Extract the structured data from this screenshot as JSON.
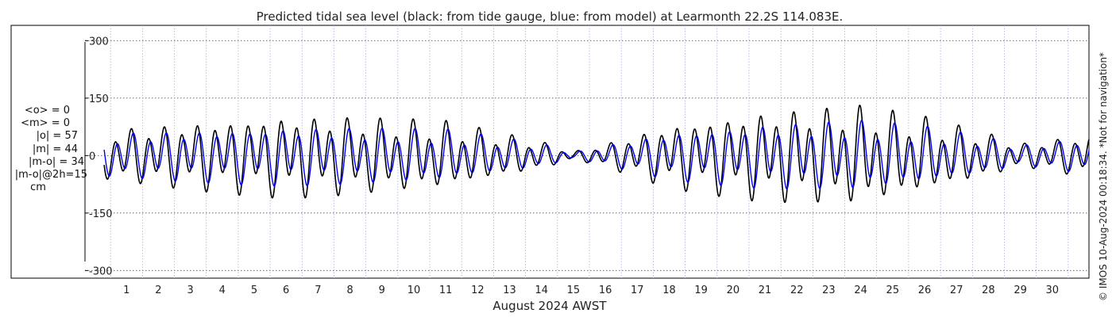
{
  "chart_data": {
    "type": "line",
    "title": "Predicted tidal sea level (black: from tide gauge, blue: from model) at Learmonth 22.2S 114.083E.",
    "xlabel": "August 2024 AWST",
    "ylabel": "",
    "x_tick_labels": [
      "1",
      "2",
      "3",
      "4",
      "5",
      "6",
      "7",
      "8",
      "9",
      "10",
      "11",
      "12",
      "13",
      "14",
      "15",
      "16",
      "17",
      "18",
      "19",
      "20",
      "21",
      "22",
      "23",
      "24",
      "25",
      "26",
      "27",
      "28",
      "29",
      "30"
    ],
    "y_ticks": [
      300,
      150,
      0,
      -150,
      -300
    ],
    "y_tick_labels": [
      "300",
      "150",
      "0",
      "-150",
      "-300"
    ],
    "ylim": [
      -320,
      340
    ],
    "xlim_days": [
      -0.3,
      31.15
    ],
    "grid": true,
    "series": [
      {
        "color": "#000000",
        "amplitude_by_day": [
          {
            "x": 0.3,
            "y": 63
          },
          {
            "x": 3,
            "y": 85
          },
          {
            "x": 6,
            "y": 105
          },
          {
            "x": 8,
            "y": 100
          },
          {
            "x": 11,
            "y": 85
          },
          {
            "x": 14,
            "y": 35
          },
          {
            "x": 15,
            "y": 10
          },
          {
            "x": 16,
            "y": 30
          },
          {
            "x": 18,
            "y": 80
          },
          {
            "x": 21,
            "y": 115
          },
          {
            "x": 24,
            "y": 125
          },
          {
            "x": 26,
            "y": 95
          },
          {
            "x": 28,
            "y": 55
          },
          {
            "x": 29,
            "y": 30
          },
          {
            "x": 30,
            "y": 40
          },
          {
            "x": 31,
            "y": 55
          }
        ]
      },
      {
        "color": "#0000ff",
        "amplitude_by_day": [
          {
            "x": 0.3,
            "y": 55
          },
          {
            "x": 3,
            "y": 65
          },
          {
            "x": 6,
            "y": 75
          },
          {
            "x": 8,
            "y": 72
          },
          {
            "x": 11,
            "y": 65
          },
          {
            "x": 14,
            "y": 30
          },
          {
            "x": 15,
            "y": 8
          },
          {
            "x": 16,
            "y": 25
          },
          {
            "x": 18,
            "y": 60
          },
          {
            "x": 21,
            "y": 82
          },
          {
            "x": 24,
            "y": 88
          },
          {
            "x": 26,
            "y": 72
          },
          {
            "x": 28,
            "y": 45
          },
          {
            "x": 29,
            "y": 25
          },
          {
            "x": 30,
            "y": 35
          },
          {
            "x": 31,
            "y": 45
          }
        ]
      }
    ]
  },
  "stats": {
    "mean_obs": "<o> = 0",
    "mean_model": "<m> = 0",
    "abs_obs": "|o| = 57",
    "abs_model": "|m| = 44",
    "abs_diff": "|m-o| = 34",
    "abs_diff_2h": "|m-o|@2h=15",
    "unit": "cm"
  },
  "side_note": "© IMOS 10-Aug-2024 00:18:34. *Not for navigation*"
}
